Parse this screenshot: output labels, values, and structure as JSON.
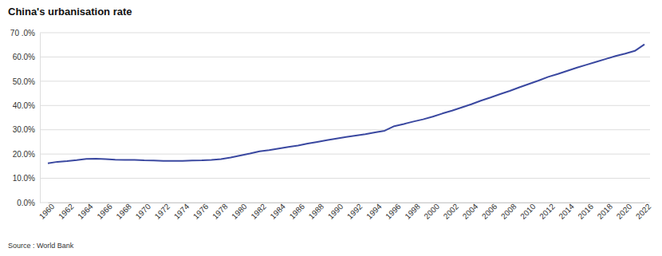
{
  "chart_data": {
    "type": "line",
    "title": "China's urbanisation rate",
    "source": "Source : World Bank",
    "categories": [
      "1960",
      null,
      "1962",
      null,
      "1964",
      null,
      "1966",
      null,
      "1968",
      null,
      "1970",
      null,
      "1972",
      null,
      "1974",
      null,
      "1976",
      null,
      "1978",
      null,
      "1980",
      null,
      "1982",
      null,
      "1984",
      null,
      "1986",
      null,
      "1988",
      null,
      "1990",
      null,
      "1992",
      null,
      "1994",
      null,
      "1996",
      null,
      "1998",
      null,
      "2000",
      null,
      "2002",
      null,
      "2004",
      null,
      "2006",
      null,
      "2008",
      null,
      "2010",
      null,
      "2012",
      null,
      "2014",
      null,
      "2016",
      null,
      "2018",
      null,
      "2020",
      null,
      "2022"
    ],
    "values": [
      16.2,
      16.8,
      17.1,
      17.5,
      18.0,
      18.1,
      17.9,
      17.7,
      17.6,
      17.6,
      17.4,
      17.3,
      17.2,
      17.2,
      17.2,
      17.3,
      17.4,
      17.6,
      17.9,
      18.6,
      19.4,
      20.2,
      21.1,
      21.6,
      22.3,
      22.9,
      23.5,
      24.3,
      25.0,
      25.7,
      26.4,
      27.0,
      27.6,
      28.2,
      28.9,
      29.6,
      31.5,
      32.4,
      33.4,
      34.3,
      35.4,
      36.7,
      37.9,
      39.2,
      40.5,
      42.0,
      43.3,
      44.7,
      46.0,
      47.5,
      48.9,
      50.3,
      51.8,
      53.0,
      54.3,
      55.6,
      56.8,
      58.0,
      59.2,
      60.4,
      61.4,
      62.5,
      65.2
    ],
    "color": "#3a48a0",
    "ylim": [
      0,
      70
    ],
    "yticks": [
      {
        "value": 0,
        "label": "0.0%"
      },
      {
        "value": 10,
        "label": "10.0%"
      },
      {
        "value": 20,
        "label": "20.0%"
      },
      {
        "value": 30,
        "label": "30.0%"
      },
      {
        "value": 40,
        "label": "40.0%"
      },
      {
        "value": 50,
        "label": "50.0%"
      },
      {
        "value": 60,
        "label": "60.0%"
      },
      {
        "value": 70,
        "label": "70 .0%"
      }
    ],
    "grid": true
  }
}
